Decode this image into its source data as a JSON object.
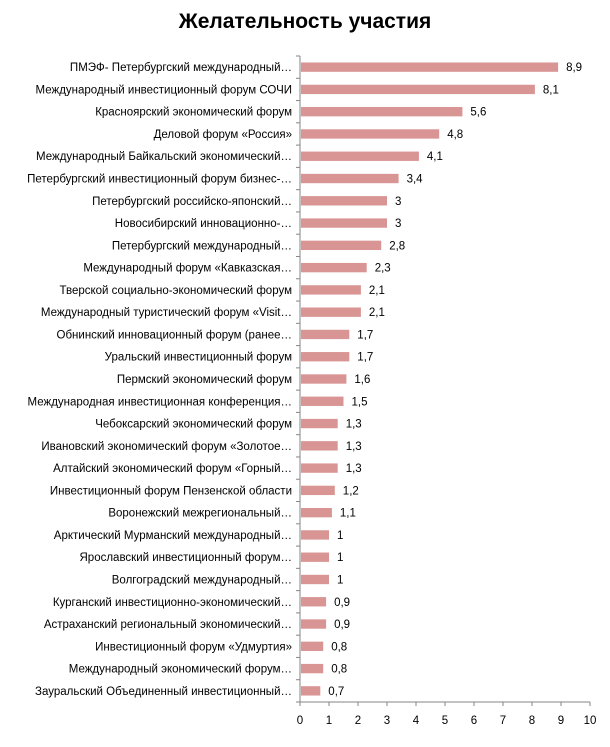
{
  "chart_data": {
    "type": "bar",
    "orientation": "horizontal",
    "title": "Желательность участия",
    "xlabel": "",
    "ylabel": "",
    "xlim": [
      0,
      10
    ],
    "ticks": [
      "0",
      "1",
      "2",
      "3",
      "4",
      "5",
      "6",
      "7",
      "8",
      "9",
      "10"
    ],
    "bar_color": "#d99594",
    "grid": false,
    "legend": "none",
    "categories": [
      "ПМЭФ- Петербургский  международный…",
      "Международный инвестиционный форум СОЧИ",
      "Красноярский экономический форум",
      "Деловой  форум «Россия»",
      "Международный  Байкальский  экономический…",
      "Петербургский  инвестиционный форум бизнес-…",
      "Петербургский российско-японский…",
      "Новосибирский  инновационно-…",
      "Петербургский международный…",
      "Международный форум «Кавказская…",
      "Тверской  социально-экономический форум",
      "Международный  туристический форум  «Visit…",
      "Обнинский инновационный  форум (ранее…",
      "Уральский  инвестиционный форум",
      "Пермский экономический форум",
      "Международная  инвестиционная конференция…",
      "Чебоксарский экономический форум",
      "Ивановский  экономический форум «Золотое…",
      "Алтайский экономический форум  «Горный…",
      "Инвестиционный форум Пензенской области",
      "Воронежский  межрегиональный…",
      "Арктический  Мурманский  международный…",
      "Ярославский  инвестиционный форум…",
      "Волгоградский международный…",
      "Курганский инвестиционно-экономический…",
      "Астраханский региональный экономический…",
      "Инвестиционный форум «Удмуртия»",
      "Международный экономический форум…",
      "Зауральский Объединенный инвестиционный…"
    ],
    "values": [
      8.9,
      8.1,
      5.6,
      4.8,
      4.1,
      3.4,
      3,
      3,
      2.8,
      2.3,
      2.1,
      2.1,
      1.7,
      1.7,
      1.6,
      1.5,
      1.3,
      1.3,
      1.3,
      1.2,
      1.1,
      1,
      1,
      1,
      0.9,
      0.9,
      0.8,
      0.8,
      0.7
    ],
    "value_labels": [
      "8,9",
      "8,1",
      "5,6",
      "4,8",
      "4,1",
      "3,4",
      "3",
      "3",
      "2,8",
      "2,3",
      "2,1",
      "2,1",
      "1,7",
      "1,7",
      "1,6",
      "1,5",
      "1,3",
      "1,3",
      "1,3",
      "1,2",
      "1,1",
      "1",
      "1",
      "1",
      "0,9",
      "0,9",
      "0,8",
      "0,8",
      "0,7"
    ]
  }
}
